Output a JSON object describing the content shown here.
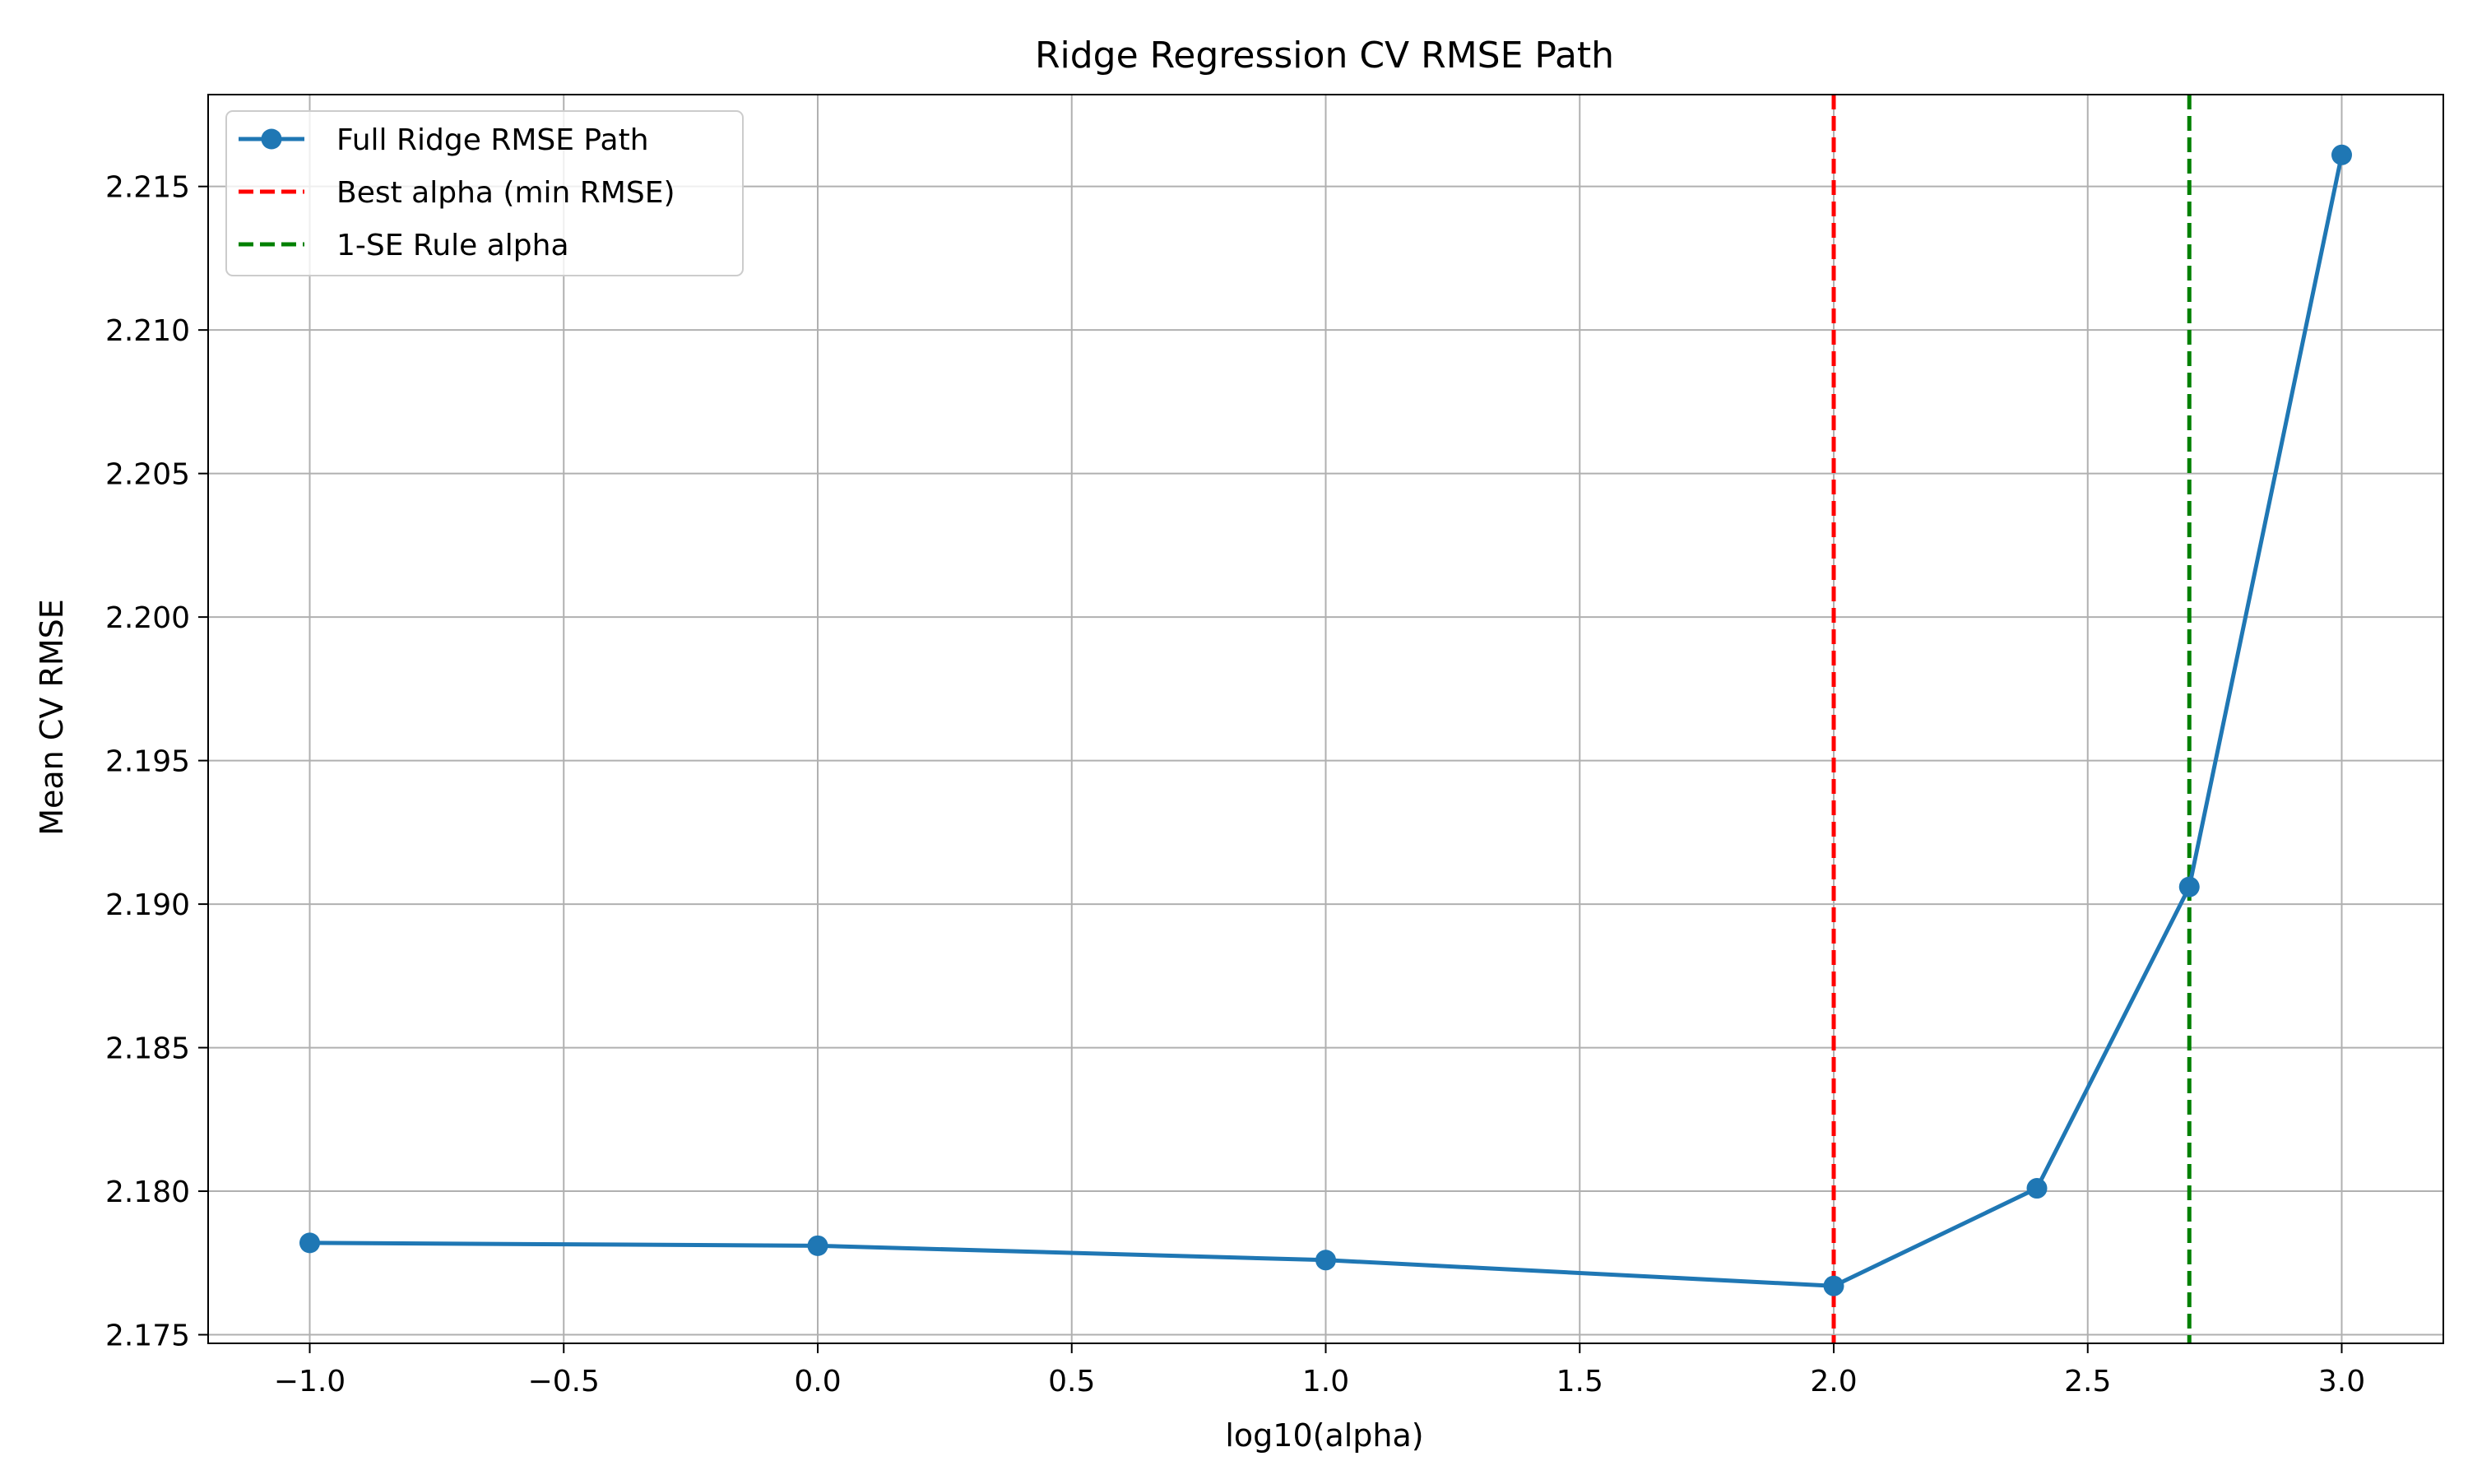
{
  "chart_data": {
    "type": "line",
    "title": "Ridge Regression CV RMSE Path",
    "xlabel": "log10(alpha)",
    "ylabel": "Mean CV RMSE",
    "xlim": [
      -1.2,
      3.2
    ],
    "ylim": [
      2.1747,
      2.2182
    ],
    "xticks": [
      -1.0,
      -0.5,
      0.0,
      0.5,
      1.0,
      1.5,
      2.0,
      2.5,
      3.0
    ],
    "xtick_labels": [
      "−1.0",
      "−0.5",
      "0.0",
      "0.5",
      "1.0",
      "1.5",
      "2.0",
      "2.5",
      "3.0"
    ],
    "yticks": [
      2.175,
      2.18,
      2.185,
      2.19,
      2.195,
      2.2,
      2.205,
      2.21,
      2.215
    ],
    "ytick_labels": [
      "2.175",
      "2.180",
      "2.185",
      "2.190",
      "2.195",
      "2.200",
      "2.205",
      "2.210",
      "2.215"
    ],
    "grid": true,
    "legend_position": "top-left",
    "series": [
      {
        "name": "Full Ridge RMSE Path",
        "color": "#1f77b4",
        "x": [
          -1.0,
          0.0,
          1.0,
          2.0,
          2.4,
          2.7,
          3.0
        ],
        "y": [
          2.1782,
          2.1781,
          2.1776,
          2.1767,
          2.1801,
          2.1906,
          2.2161
        ]
      }
    ],
    "vlines": [
      {
        "name": "Best alpha (min RMSE)",
        "x": 2.0,
        "color": "#ff0000"
      },
      {
        "name": "1-SE Rule alpha",
        "x": 2.7,
        "color": "#008000"
      }
    ]
  }
}
